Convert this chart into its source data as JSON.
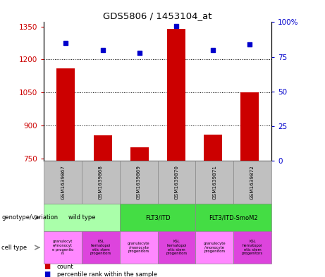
{
  "title": "GDS5806 / 1453104_at",
  "samples": [
    "GSM1639867",
    "GSM1639868",
    "GSM1639869",
    "GSM1639870",
    "GSM1639871",
    "GSM1639872"
  ],
  "bar_values": [
    1160,
    855,
    800,
    1340,
    860,
    1050
  ],
  "percentile_values": [
    85,
    80,
    78,
    97,
    80,
    84
  ],
  "bar_color": "#cc0000",
  "dot_color": "#0000cc",
  "ylim_left": [
    740,
    1370
  ],
  "ylim_right": [
    0,
    100
  ],
  "yticks_left": [
    750,
    900,
    1050,
    1200,
    1350
  ],
  "yticks_right": [
    0,
    25,
    50,
    75,
    100
  ],
  "ytick_labels_right": [
    "0",
    "25",
    "50",
    "75",
    "100%"
  ],
  "bar_color_hex": "#cc0000",
  "dot_color_hex": "#0000cc",
  "sample_box_color": "#c0c0c0",
  "sample_box_edge": "#888888",
  "geno_groups": [
    {
      "label": "wild type",
      "color": "#aaffaa",
      "cols": [
        0,
        1
      ]
    },
    {
      "label": "FLT3/ITD",
      "color": "#44dd44",
      "cols": [
        2,
        3
      ]
    },
    {
      "label": "FLT3/ITD-SmoM2",
      "color": "#44dd44",
      "cols": [
        4,
        5
      ]
    }
  ],
  "cell_types": [
    {
      "label": "granulocyt\ne/monocyt\ne progenito\nrs",
      "color": "#ff88ff"
    },
    {
      "label": "KSL\nhematopoi\netic stem\nprogenitors",
      "color": "#dd44dd"
    },
    {
      "label": "granulocyte\n/monocyte\nprogenitors",
      "color": "#ff88ff"
    },
    {
      "label": "KSL\nhematopoi\netic stem\nprogenitors",
      "color": "#dd44dd"
    },
    {
      "label": "granulocyte\n/monocyte\nprogenitors",
      "color": "#ff88ff"
    },
    {
      "label": "KSL\nhematopoi\netic stem\nprogenitors",
      "color": "#dd44dd"
    }
  ],
  "bar_bottom": 740,
  "legend_count_color": "#cc0000",
  "legend_pct_color": "#0000cc"
}
